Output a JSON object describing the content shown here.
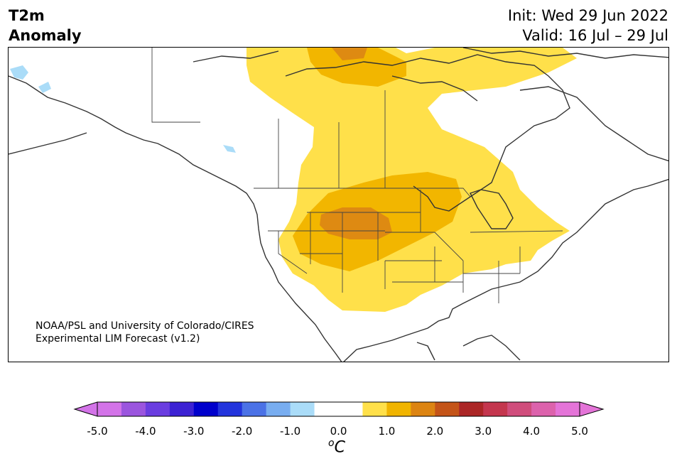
{
  "header": {
    "title_line1": "T2m",
    "title_line2": "Anomaly",
    "init_label": "Init: Wed 29 Jun 2022",
    "valid_label": "Valid: 16 Jul – 29 Jul"
  },
  "credit": {
    "line1": "NOAA/PSL and University of Colorado/CIRES",
    "line2": "Experimental LIM Forecast (v1.2)"
  },
  "colorbar": {
    "unit": "C",
    "unit_prefix": "o",
    "ticks": [
      "-5.0",
      "-4.0",
      "-3.0",
      "-2.0",
      "-1.0",
      "0.0",
      "1.0",
      "2.0",
      "3.0",
      "4.0",
      "5.0"
    ],
    "colors": [
      "#d373e8",
      "#9b55de",
      "#6a3de0",
      "#3c22d3",
      "#0000cc",
      "#2334dc",
      "#4b72e6",
      "#78adf0",
      "#aadcf8",
      "#ffffff",
      "#ffffff",
      "#ffe04a",
      "#f0b400",
      "#dc8412",
      "#c45418",
      "#ab2626",
      "#c4364e",
      "#d04d7c",
      "#dc62ac",
      "#e474d8"
    ],
    "low_extend_color": "#d373e8",
    "high_extend_color": "#e474d8"
  },
  "map": {
    "anomaly_colors": {
      "light_positive": "#ffe04a",
      "medium_positive": "#f2b600",
      "strong_positive": "#de8a12",
      "light_negative": "#aadcf8"
    }
  }
}
